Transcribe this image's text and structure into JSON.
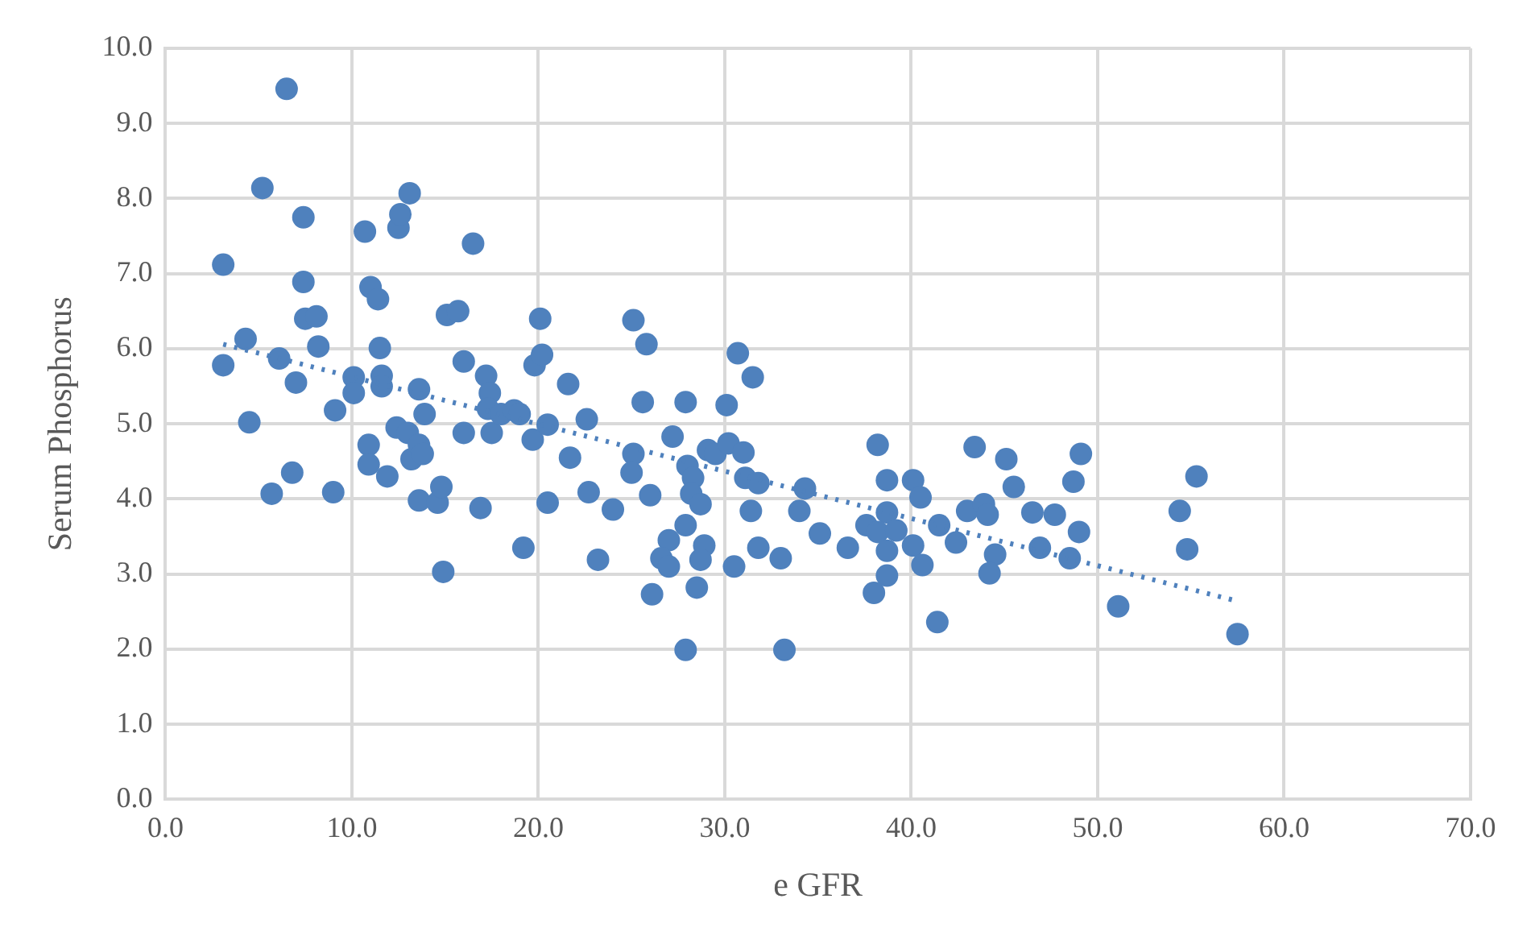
{
  "chart_data": {
    "type": "scatter",
    "xlabel": "e GFR",
    "ylabel": "Serum Phosphorus",
    "xlim": [
      0,
      70
    ],
    "xticks": [
      {
        "value": 0,
        "label": "0.0"
      },
      {
        "value": 10,
        "label": "10.0"
      },
      {
        "value": 20,
        "label": "20.0"
      },
      {
        "value": 30,
        "label": "30.0"
      },
      {
        "value": 40,
        "label": "40.0"
      },
      {
        "value": 50,
        "label": "50.0"
      },
      {
        "value": 60,
        "label": "60.0"
      },
      {
        "value": 70,
        "label": "70.0"
      }
    ],
    "ylim": [
      0,
      10
    ],
    "yticks": [
      {
        "value": 0,
        "label": "0.0"
      },
      {
        "value": 1,
        "label": "1.0"
      },
      {
        "value": 2,
        "label": "2.0"
      },
      {
        "value": 3,
        "label": "3.0"
      },
      {
        "value": 4,
        "label": "4.0"
      },
      {
        "value": 5,
        "label": "5.0"
      },
      {
        "value": 6,
        "label": "6.0"
      },
      {
        "value": 7,
        "label": "7.0"
      },
      {
        "value": 8,
        "label": "8.0"
      },
      {
        "value": 9,
        "label": "9.0"
      },
      {
        "value": 10,
        "label": "10.0"
      }
    ],
    "grid": true,
    "legend": false,
    "marker": "circle",
    "series": [
      {
        "type": "scatter",
        "color": "#4f81bd",
        "x": [
          3.1,
          3.1,
          4.3,
          4.5,
          5.2,
          5.7,
          6.1,
          6.5,
          6.8,
          7.0,
          7.4,
          7.4,
          7.5,
          8.1,
          8.2,
          9.0,
          9.1,
          10.1,
          10.1,
          10.7,
          10.9,
          10.9,
          11.0,
          11.4,
          11.5,
          11.6,
          11.6,
          11.9,
          12.4,
          12.5,
          12.6,
          13.1,
          13.0,
          13.2,
          13.6,
          13.8,
          13.6,
          13.6,
          13.9,
          14.6,
          14.8,
          14.9,
          15.1,
          15.7,
          16.0,
          16.0,
          16.5,
          16.9,
          17.2,
          17.4,
          17.3,
          17.5,
          18.0,
          18.7,
          19.0,
          19.2,
          19.7,
          19.8,
          20.1,
          20.2,
          20.5,
          20.5,
          21.6,
          21.7,
          22.6,
          22.7,
          23.2,
          24.0,
          25.1,
          25.8,
          25.6,
          27.9,
          30.1,
          30.7,
          31.5,
          27.2,
          25.1,
          25.0,
          26.0,
          28.0,
          28.3,
          28.2,
          28.7,
          29.1,
          29.5,
          30.2,
          31.0,
          31.1,
          31.8,
          31.4,
          34.3,
          34.0,
          27.9,
          27.0,
          26.6,
          27.0,
          28.9,
          28.7,
          30.5,
          31.8,
          33.0,
          26.1,
          28.5,
          27.9,
          33.2,
          38.2,
          35.1,
          36.6,
          38.7,
          37.6,
          38.7,
          38.2,
          39.2,
          38.7,
          38.7,
          38.0,
          40.1,
          40.5,
          40.1,
          40.6,
          41.5,
          42.4,
          41.4,
          43.4,
          45.1,
          45.5,
          43.0,
          43.9,
          44.1,
          44.5,
          44.2,
          46.5,
          47.7,
          46.9,
          48.5,
          48.7,
          49.1,
          49.0,
          51.1,
          54.4,
          55.3,
          54.8,
          57.5
        ],
        "values": [
          5.78,
          7.12,
          6.13,
          5.02,
          8.14,
          4.07,
          5.87,
          9.46,
          4.35,
          5.55,
          6.89,
          7.75,
          6.4,
          6.43,
          6.03,
          4.09,
          5.18,
          5.62,
          5.41,
          7.56,
          4.72,
          4.46,
          6.82,
          6.66,
          6.01,
          5.64,
          5.5,
          4.3,
          4.95,
          7.61,
          7.79,
          8.07,
          4.88,
          4.53,
          4.72,
          4.6,
          5.46,
          3.98,
          5.13,
          3.95,
          4.16,
          3.03,
          6.45,
          6.5,
          4.88,
          5.83,
          7.4,
          3.88,
          5.64,
          5.41,
          5.2,
          4.88,
          5.13,
          5.18,
          5.13,
          3.35,
          4.79,
          5.78,
          6.4,
          5.92,
          4.99,
          3.95,
          5.53,
          4.55,
          5.06,
          4.09,
          3.19,
          3.86,
          6.38,
          6.06,
          5.29,
          5.29,
          5.25,
          5.94,
          5.62,
          4.83,
          4.6,
          4.35,
          4.05,
          4.44,
          4.28,
          4.07,
          3.93,
          4.65,
          4.6,
          4.74,
          4.62,
          4.28,
          4.21,
          3.84,
          4.14,
          3.84,
          3.65,
          3.45,
          3.21,
          3.1,
          3.38,
          3.19,
          3.1,
          3.35,
          3.21,
          2.73,
          2.82,
          1.99,
          1.99,
          4.72,
          3.54,
          3.35,
          4.25,
          3.65,
          3.82,
          3.56,
          3.58,
          3.31,
          2.98,
          2.75,
          4.25,
          4.02,
          3.38,
          3.12,
          3.65,
          3.42,
          2.36,
          4.69,
          4.53,
          4.16,
          3.84,
          3.93,
          3.79,
          3.26,
          3.01,
          3.82,
          3.79,
          3.35,
          3.21,
          4.23,
          4.6,
          3.56,
          2.57,
          3.84,
          4.3,
          3.33,
          2.2
        ]
      },
      {
        "type": "line",
        "color": "#4f81bd",
        "line_style": "dotted",
        "marker": "none",
        "x": [
          3.1,
          57.5
        ],
        "values": [
          6.06,
          2.64
        ]
      }
    ]
  }
}
